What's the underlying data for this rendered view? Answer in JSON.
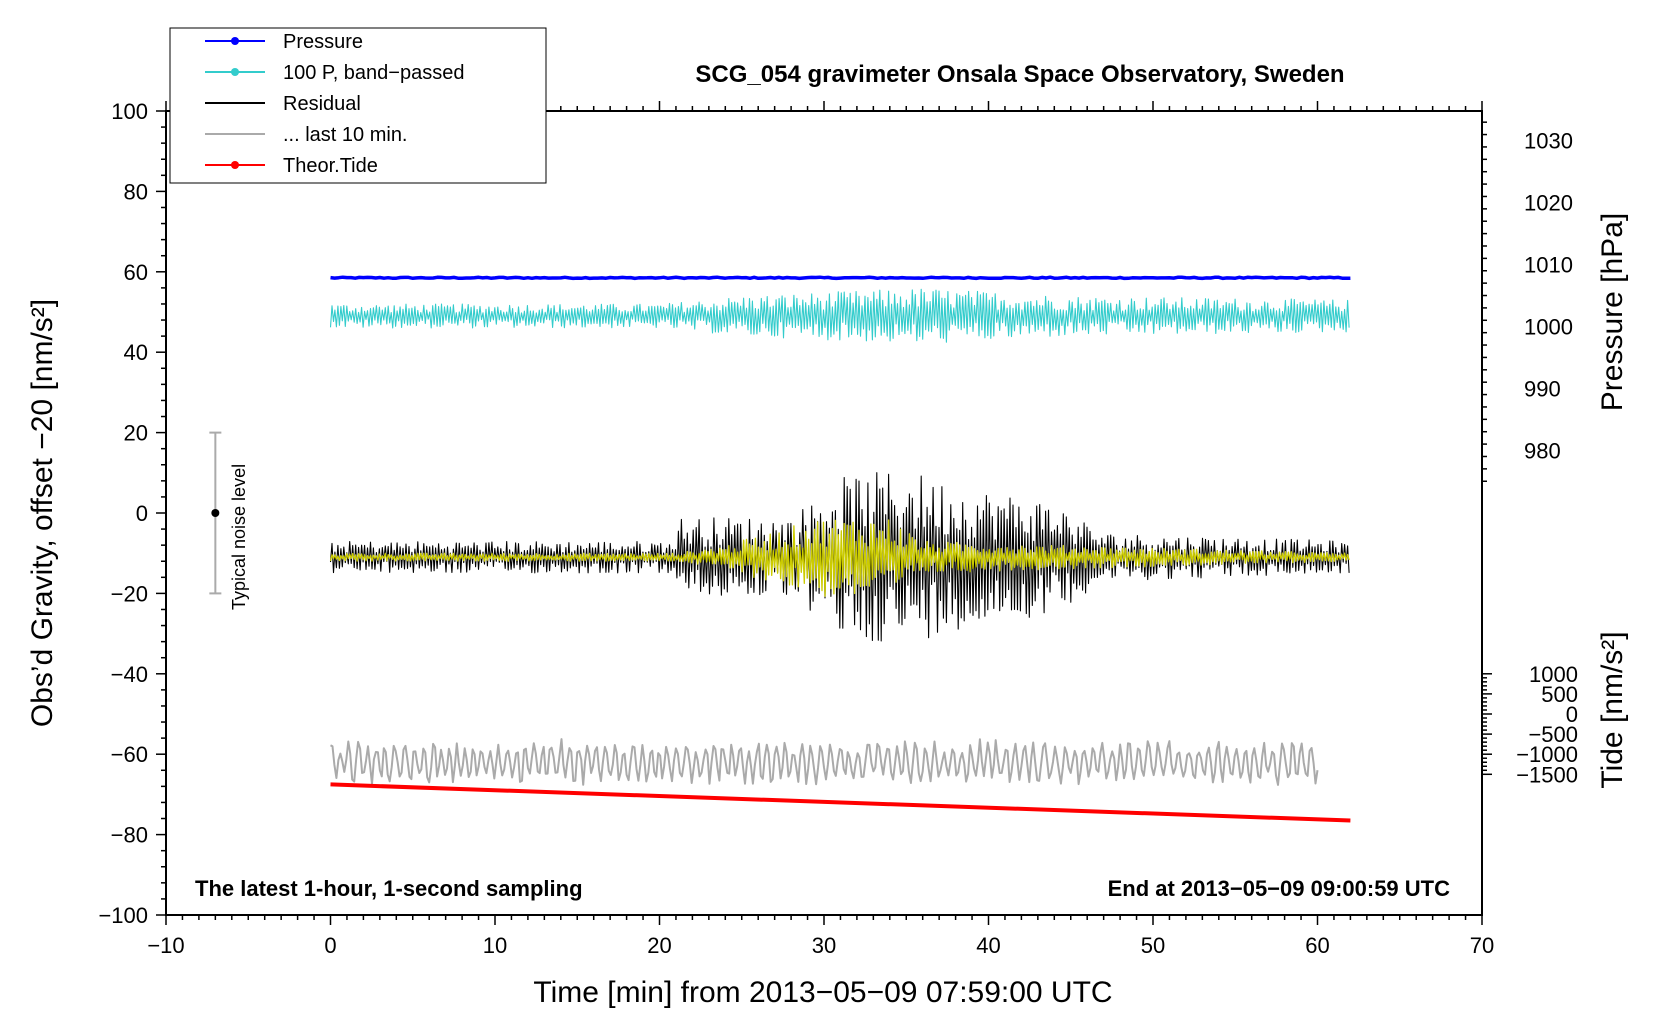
{
  "chart_data": {
    "type": "line",
    "title": "SCG_054 gravimeter Onsala Space Observatory, Sweden",
    "xlabel": "Time [min] from 2013−05−09 07:59:00 UTC",
    "ylabel_left": "Obs’d Gravity, offset −20 [nm/s²]",
    "ylabel_pressure": "Pressure [hPa]",
    "ylabel_tide": "Tide [nm/s²]",
    "xlim": [
      -10,
      70
    ],
    "ylim": [
      -100,
      100
    ],
    "x_ticks": [
      -10,
      0,
      10,
      20,
      30,
      40,
      50,
      60,
      70
    ],
    "x_tick_labels": [
      "−10",
      "0",
      "10",
      "20",
      "30",
      "40",
      "50",
      "60",
      "70"
    ],
    "y_ticks": [
      -100,
      -80,
      -60,
      -40,
      -20,
      0,
      20,
      40,
      60,
      80,
      100
    ],
    "y_tick_labels": [
      "−100",
      "−80",
      "−60",
      "−40",
      "−20",
      "0",
      "20",
      "40",
      "60",
      "80",
      "100"
    ],
    "pressure_axis": {
      "ticks": [
        980,
        990,
        1000,
        1010,
        1020,
        1030
      ],
      "tick_labels": [
        "980",
        "990",
        "1000",
        "1010",
        "1020",
        "1030"
      ],
      "left_equiv_at_980": 15.6,
      "left_units_per_hpa": 1.54
    },
    "tide_axis": {
      "ticks": [
        -1500,
        -1000,
        -500,
        0,
        500,
        1000
      ],
      "tick_labels": [
        "−1500",
        "−1000",
        "−500",
        "0",
        "500",
        "1000"
      ],
      "left_equiv_at_0": -50,
      "left_units_per_nms2": 0.01
    },
    "annotations": {
      "left": "The latest 1-hour, 1-second sampling",
      "right": "End at 2013−05−09 09:00:59 UTC"
    },
    "noise_level": {
      "label": "Typical noise level",
      "x": -7,
      "center": 0,
      "halfwidth": 20
    },
    "legend": [
      {
        "label": "Pressure",
        "color": "#0000ff",
        "marker": true
      },
      {
        "label": "100 P, band−passed",
        "color": "#33cccc",
        "marker": true
      },
      {
        "label": "Residual",
        "color": "#000000",
        "marker": false
      },
      {
        "label": "... last 10 min.",
        "color": "#aaaaaa",
        "marker": false
      },
      {
        "label": "Theor.Tide",
        "color": "#ff0000",
        "marker": true
      }
    ],
    "series": [
      {
        "name": "Pressure",
        "color": "#0000ff",
        "kind": "constant",
        "x_range": [
          0,
          62
        ],
        "value": 58.5,
        "noise": 0.3
      },
      {
        "name": "100 P, band−passed",
        "color": "#33cccc",
        "kind": "noise",
        "x_range": [
          0,
          62
        ],
        "center": 49,
        "profile": [
          {
            "t": 0,
            "amp": 3
          },
          {
            "t": 20,
            "amp": 3
          },
          {
            "t": 25,
            "amp": 5
          },
          {
            "t": 36,
            "amp": 7
          },
          {
            "t": 45,
            "amp": 5
          },
          {
            "t": 62,
            "amp": 4
          }
        ]
      },
      {
        "name": "Residual",
        "color": "#000000",
        "kind": "noise",
        "x_range": [
          0,
          62
        ],
        "center": -11,
        "profile": [
          {
            "t": 0,
            "amp": 4
          },
          {
            "t": 20.8,
            "amp": 4
          },
          {
            "t": 21.2,
            "amp": 10
          },
          {
            "t": 28,
            "amp": 10
          },
          {
            "t": 31,
            "amp": 20
          },
          {
            "t": 35,
            "amp": 22
          },
          {
            "t": 38,
            "amp": 18
          },
          {
            "t": 44,
            "amp": 14
          },
          {
            "t": 47,
            "amp": 6
          },
          {
            "t": 62,
            "amp": 4
          }
        ]
      },
      {
        "name": "Residual (band-passed)",
        "color": "#cccc00",
        "kind": "noise",
        "x_range": [
          0,
          62
        ],
        "center": -11,
        "profile": [
          {
            "t": 0,
            "amp": 1
          },
          {
            "t": 21,
            "amp": 1
          },
          {
            "t": 24,
            "amp": 3
          },
          {
            "t": 30,
            "amp": 10
          },
          {
            "t": 34,
            "amp": 10
          },
          {
            "t": 36,
            "amp": 4
          },
          {
            "t": 44,
            "amp": 3
          },
          {
            "t": 62,
            "amp": 1
          }
        ]
      },
      {
        "name": "... last 10 min.",
        "color": "#aaaaaa",
        "kind": "wave",
        "x_range": [
          0,
          60
        ],
        "center": -62,
        "amp": 4.5
      },
      {
        "name": "Theor.Tide",
        "color": "#ff0000",
        "kind": "linear",
        "x": [
          0,
          62
        ],
        "y": [
          -67.5,
          -76.5
        ]
      }
    ]
  }
}
